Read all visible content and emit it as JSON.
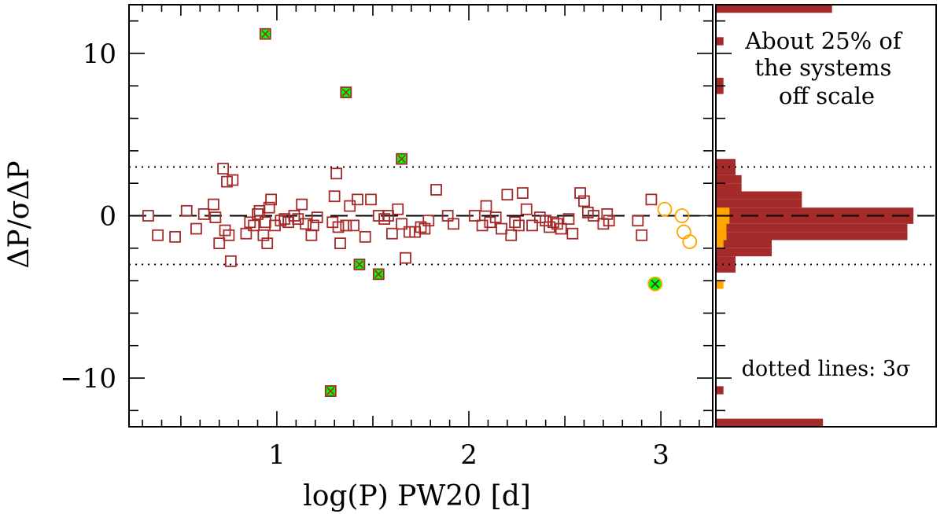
{
  "chart_data": [
    {
      "type": "scatter",
      "xlabel": "log(P) PW20 [d]",
      "ylabel": "ΔP/σΔP",
      "xlim": [
        0.23,
        3.27
      ],
      "ylim": [
        -13.0,
        13.0
      ],
      "xticks_major": [
        1,
        2,
        3
      ],
      "yticks_major": [
        -10,
        0,
        10
      ],
      "x_tick_labels": [
        "1",
        "2",
        "3"
      ],
      "y_tick_labels": [
        "−10",
        "0",
        "10"
      ],
      "reference_lines": [
        {
          "style": "dashed",
          "y": 0
        },
        {
          "style": "dotted",
          "y": 3
        },
        {
          "style": "dotted",
          "y": -3
        }
      ],
      "colors": {
        "squares": "#a52a2a",
        "circles": "#ffa500",
        "cross_fill": "#00ff00"
      },
      "series": [
        {
          "marker": "square",
          "color": "#a52a2a",
          "x": [
            0.33,
            0.38,
            0.47,
            0.53,
            0.58,
            0.62,
            0.67,
            0.68,
            0.7,
            0.72,
            0.73,
            0.74,
            0.75,
            0.76,
            0.77,
            0.84,
            0.86,
            0.88,
            0.9,
            0.91,
            0.93,
            0.94,
            0.95,
            0.96,
            0.97,
            0.99,
            1.02,
            1.04,
            1.06,
            1.09,
            1.11,
            1.13,
            1.15,
            1.18,
            1.19,
            1.21,
            1.29,
            1.3,
            1.31,
            1.32,
            1.33,
            1.36,
            1.38,
            1.4,
            1.42,
            1.46,
            1.49,
            1.53,
            1.56,
            1.58,
            1.6,
            1.63,
            1.65,
            1.67,
            1.69,
            1.72,
            1.75,
            1.77,
            1.79,
            1.83,
            1.89,
            1.92,
            2.03,
            2.07,
            2.09,
            2.11,
            2.14,
            2.17,
            2.2,
            2.22,
            2.24,
            2.26,
            2.28,
            2.3,
            2.33,
            2.37,
            2.4,
            2.42,
            2.44,
            2.46,
            2.48,
            2.52,
            2.54,
            2.58,
            2.6,
            2.62,
            2.65,
            2.7,
            2.72,
            2.73,
            2.88,
            2.9,
            2.95
          ],
          "y": [
            0.0,
            -1.2,
            -1.3,
            0.3,
            -0.8,
            0.1,
            0.7,
            -0.1,
            -1.7,
            2.9,
            -0.9,
            2.1,
            -1.2,
            -2.8,
            2.2,
            -1.1,
            -0.4,
            -0.6,
            0.1,
            0.3,
            -1.2,
            -0.4,
            -1.7,
            0.5,
            1.0,
            -0.6,
            -0.3,
            -0.2,
            -0.4,
            0.0,
            -0.2,
            0.7,
            -0.5,
            -1.2,
            -0.6,
            -0.1,
            -0.4,
            1.2,
            2.6,
            -0.7,
            -1.7,
            -0.6,
            0.6,
            -0.6,
            1.0,
            -1.3,
            1.0,
            0.0,
            -0.2,
            0.0,
            -1.1,
            0.4,
            -0.5,
            -2.6,
            -1.0,
            -1.0,
            -0.7,
            -0.8,
            -0.3,
            1.6,
            0.0,
            -0.5,
            0.0,
            -0.6,
            0.6,
            -0.4,
            -0.1,
            -0.8,
            1.3,
            -1.2,
            -0.4,
            -0.6,
            1.4,
            0.4,
            -0.6,
            -0.1,
            -0.3,
            -0.7,
            -0.4,
            -0.5,
            -0.8,
            -0.2,
            -1.1,
            1.4,
            0.9,
            0.2,
            0.0,
            -0.5,
            0.1,
            -0.3,
            -0.3,
            -1.2,
            1.0
          ]
        },
        {
          "marker": "square-cross",
          "color": "#a52a2a",
          "fill": "#00ff00",
          "x": [
            0.94,
            1.36,
            1.65,
            1.43,
            1.53,
            1.28
          ],
          "y": [
            11.2,
            7.6,
            3.5,
            -3.0,
            -3.6,
            -10.8
          ]
        },
        {
          "marker": "circle",
          "color": "#ffa500",
          "x": [
            3.02,
            3.11,
            3.12,
            3.15
          ],
          "y": [
            0.4,
            0.0,
            -1.0,
            -1.6
          ]
        },
        {
          "marker": "circle-cross",
          "color": "#ffa500",
          "fill": "#00ff00",
          "x": [
            2.97
          ],
          "y": [
            -4.2
          ]
        }
      ]
    },
    {
      "type": "bar",
      "orientation": "horizontal",
      "ylim": [
        -13.0,
        13.0
      ],
      "reference_lines": [
        {
          "style": "dashed",
          "y": 0
        },
        {
          "style": "dotted",
          "y": 3
        },
        {
          "style": "dotted",
          "y": -3
        }
      ],
      "bins_brown": [
        {
          "y0": 12.5,
          "y1": 13.0,
          "value": 38
        },
        {
          "y0": 10.5,
          "y1": 11.0,
          "value": 2
        },
        {
          "y0": 8.0,
          "y1": 8.5,
          "value": 2
        },
        {
          "y0": 7.5,
          "y1": 8.0,
          "value": 2
        },
        {
          "y0": 3.0,
          "y1": 3.5,
          "value": 6
        },
        {
          "y0": 2.5,
          "y1": 3.0,
          "value": 6
        },
        {
          "y0": 2.0,
          "y1": 2.5,
          "value": 8
        },
        {
          "y0": 1.5,
          "y1": 2.0,
          "value": 8
        },
        {
          "y0": 1.0,
          "y1": 1.5,
          "value": 28
        },
        {
          "y0": 0.5,
          "y1": 1.0,
          "value": 28
        },
        {
          "y0": 0.0,
          "y1": 0.5,
          "value": 65
        },
        {
          "y0": -0.5,
          "y1": 0.0,
          "value": 65
        },
        {
          "y0": -1.0,
          "y1": -0.5,
          "value": 63
        },
        {
          "y0": -1.5,
          "y1": -1.0,
          "value": 63
        },
        {
          "y0": -2.0,
          "y1": -1.5,
          "value": 18
        },
        {
          "y0": -2.5,
          "y1": -2.0,
          "value": 18
        },
        {
          "y0": -3.0,
          "y1": -2.5,
          "value": 6
        },
        {
          "y0": -3.5,
          "y1": -3.0,
          "value": 6
        },
        {
          "y0": -11.0,
          "y1": -10.5,
          "value": 2
        },
        {
          "y0": -13.0,
          "y1": -12.5,
          "value": 35
        }
      ],
      "bins_orange": [
        {
          "y0": 0.0,
          "y1": 0.5,
          "value": 4
        },
        {
          "y0": -0.5,
          "y1": 0.0,
          "value": 4
        },
        {
          "y0": -1.0,
          "y1": -0.5,
          "value": 3
        },
        {
          "y0": -1.5,
          "y1": -1.0,
          "value": 3
        },
        {
          "y0": -2.0,
          "y1": -1.5,
          "value": 2
        },
        {
          "y0": -4.5,
          "y1": -4.0,
          "value": 2
        }
      ],
      "xmax": 72,
      "annotations": [
        {
          "text": "About 25% of the systems off scale",
          "lines": [
            "About 25% of",
            "the systems",
            "off scale"
          ]
        },
        {
          "text": "dotted lines: 3σ"
        }
      ]
    }
  ]
}
